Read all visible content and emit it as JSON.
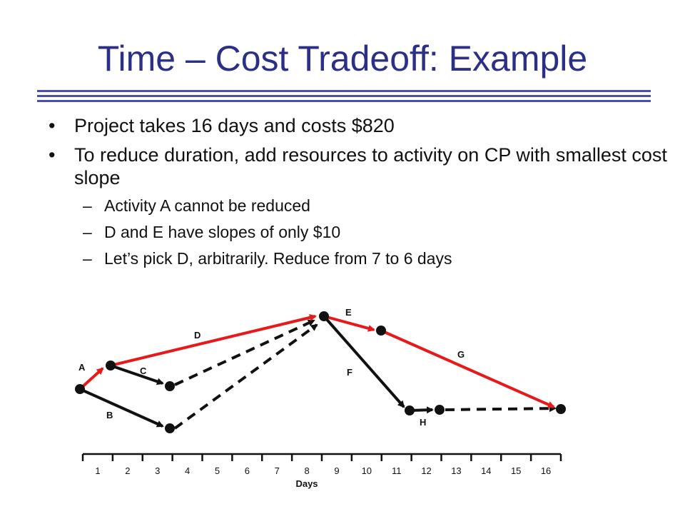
{
  "title": "Time – Cost Tradeoff: Example",
  "bullets": [
    {
      "text": "Project takes 16 days and costs $820"
    },
    {
      "text": "To reduce duration, add resources to activity on CP with smallest cost slope"
    }
  ],
  "sub_bullets": [
    {
      "text": "Activity A cannot be reduced"
    },
    {
      "text": "D and E have slopes of only $10"
    },
    {
      "text": "Let’s pick D, arbitrarily.  Reduce from 7 to 6 days"
    }
  ],
  "diagram": {
    "colors": {
      "critical": "#e8191b",
      "normal": "#111111"
    },
    "activities": [
      {
        "label": "A",
        "critical": true,
        "dashed": false
      },
      {
        "label": "B",
        "critical": false,
        "dashed": false
      },
      {
        "label": "C",
        "critical": false,
        "dashed": false
      },
      {
        "label": "D",
        "critical": true,
        "dashed": false
      },
      {
        "label": "E",
        "critical": true,
        "dashed": false
      },
      {
        "label": "F",
        "critical": false,
        "dashed": false
      },
      {
        "label": "G",
        "critical": true,
        "dashed": false
      },
      {
        "label": "H",
        "critical": false,
        "dashed": false
      }
    ],
    "axis": {
      "title": "Days",
      "ticks": [
        "1",
        "2",
        "3",
        "4",
        "5",
        "6",
        "7",
        "8",
        "9",
        "10",
        "11",
        "12",
        "13",
        "14",
        "15",
        "16"
      ]
    }
  }
}
